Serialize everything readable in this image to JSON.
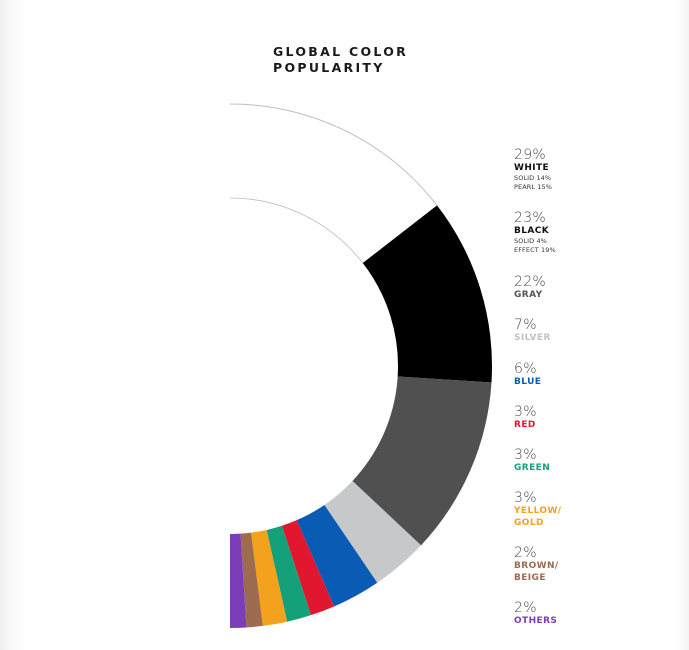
{
  "chart_data": {
    "type": "pie",
    "title": [
      "GLOBAL COLOR",
      "POPULARITY"
    ],
    "slices": [
      {
        "label": "WHITE",
        "percent_text": "29%",
        "value": 29,
        "color": "#ffffff",
        "label_color": "#111111",
        "details": [
          "SOLID 14%",
          "PEARL 15%"
        ]
      },
      {
        "label": "BLACK",
        "percent_text": "23%",
        "value": 23,
        "color": "#000000",
        "label_color": "#111111",
        "details": [
          "SOLID 4%",
          "EFFECT 19%"
        ]
      },
      {
        "label": "GRAY",
        "percent_text": "22%",
        "value": 22,
        "color": "#505050",
        "label_color": "#555555",
        "details": []
      },
      {
        "label": "SILVER",
        "percent_text": "7%",
        "value": 7,
        "color": "#c6c8ca",
        "label_color": "#c0c2c4",
        "details": []
      },
      {
        "label": "BLUE",
        "percent_text": "6%",
        "value": 6,
        "color": "#0a5bb4",
        "label_color": "#0a5bb4",
        "details": []
      },
      {
        "label": "RED",
        "percent_text": "3%",
        "value": 3,
        "color": "#e0172f",
        "label_color": "#e0172f",
        "details": []
      },
      {
        "label": "GREEN",
        "percent_text": "3%",
        "value": 3,
        "color": "#14a079",
        "label_color": "#14a079",
        "details": []
      },
      {
        "label": "YELLOW/\nGOLD",
        "percent_text": "3%",
        "value": 3,
        "color": "#f4a11d",
        "label_color": "#f4a11d",
        "details": []
      },
      {
        "label": "BROWN/\nBEIGE",
        "percent_text": "2%",
        "value": 2,
        "color": "#9c6b50",
        "label_color": "#9c6b50",
        "details": []
      },
      {
        "label": "OTHERS",
        "percent_text": "2%",
        "value": 2,
        "color": "#7b3db8",
        "label_color": "#7b3db8",
        "details": []
      }
    ]
  }
}
